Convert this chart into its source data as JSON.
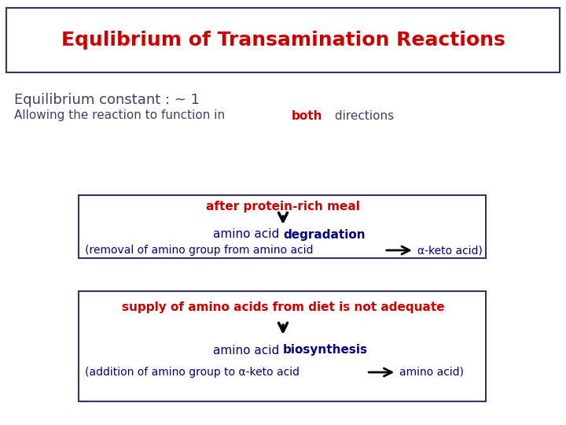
{
  "title": "Equlibrium of Transamination Reactions",
  "title_color": "#cc0000",
  "title_fontsize": 18,
  "bg_color": "#ffffff",
  "subtitle1": "Equilibrium constant : ~ 1",
  "subtitle1_color": "#404060",
  "subtitle1_fontsize": 13,
  "subtitle2_prefix": "Allowing the reaction to function in ",
  "subtitle2_bold": "both",
  "subtitle2_suffix": " directions",
  "subtitle2_color": "#404060",
  "subtitle2_bold_color": "#cc0000",
  "subtitle2_fontsize": 11,
  "box1_top_text": "after protein-rich meal",
  "box1_top_color": "#cc0000",
  "box1_mid_prefix": "amino acid ",
  "box1_mid_bold": "degradation",
  "box1_mid_color": "#000080",
  "box1_mid_bold_color": "#000080",
  "box1_bot_prefix": "(removal of amino group from amino acid",
  "box1_bot_suffix": "α-keto acid)",
  "box1_bot_color": "#000080",
  "box2_top_text": "supply of amino acids from diet is not adequate",
  "box2_top_color": "#cc0000",
  "box2_mid_prefix": "amino acid ",
  "box2_mid_bold": "biosynthesis",
  "box2_mid_color": "#000080",
  "box2_mid_bold_color": "#000080",
  "box2_bot_prefix": "(addition of amino group to α-keto acid",
  "box2_bot_suffix": "amino acid)",
  "box2_bot_color": "#000080",
  "box_edge_color": "#333366",
  "arrow_color": "#000000",
  "title_box_edge": "#333366"
}
